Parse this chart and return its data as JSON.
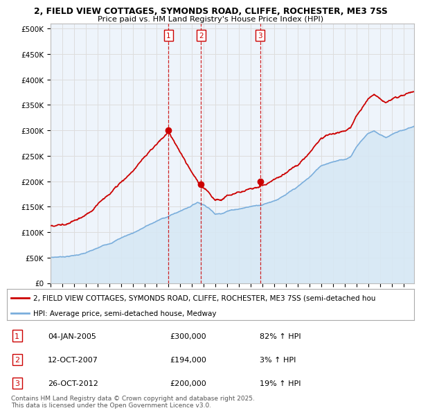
{
  "title_line1": "2, FIELD VIEW COTTAGES, SYMONDS ROAD, CLIFFE, ROCHESTER, ME3 7SS",
  "title_line2": "Price paid vs. HM Land Registry's House Price Index (HPI)",
  "yticks": [
    0,
    50000,
    100000,
    150000,
    200000,
    250000,
    300000,
    350000,
    400000,
    450000,
    500000
  ],
  "ytick_labels": [
    "£0",
    "£50K",
    "£100K",
    "£150K",
    "£200K",
    "£250K",
    "£300K",
    "£350K",
    "£400K",
    "£450K",
    "£500K"
  ],
  "xlim_start": 1995.0,
  "xlim_end": 2025.9,
  "ylim_min": 0,
  "ylim_max": 510000,
  "sale_dates": [
    2005.02,
    2007.79,
    2012.82
  ],
  "sale_prices": [
    300000,
    194000,
    200000
  ],
  "sale_labels": [
    "1",
    "2",
    "3"
  ],
  "red_line_color": "#cc0000",
  "blue_line_color": "#7aaedc",
  "blue_fill_color": "#d6e8f5",
  "grid_color": "#dddddd",
  "sale_vline_color": "#cc0000",
  "background_color": "#ffffff",
  "legend_label_red": "2, FIELD VIEW COTTAGES, SYMONDS ROAD, CLIFFE, ROCHESTER, ME3 7SS (semi-detached hou",
  "legend_label_blue": "HPI: Average price, semi-detached house, Medway",
  "table_rows": [
    [
      "1",
      "04-JAN-2005",
      "£300,000",
      "82% ↑ HPI"
    ],
    [
      "2",
      "12-OCT-2007",
      "£194,000",
      "3% ↑ HPI"
    ],
    [
      "3",
      "26-OCT-2012",
      "£200,000",
      "19% ↑ HPI"
    ]
  ],
  "footnote": "Contains HM Land Registry data © Crown copyright and database right 2025.\nThis data is licensed under the Open Government Licence v3.0."
}
